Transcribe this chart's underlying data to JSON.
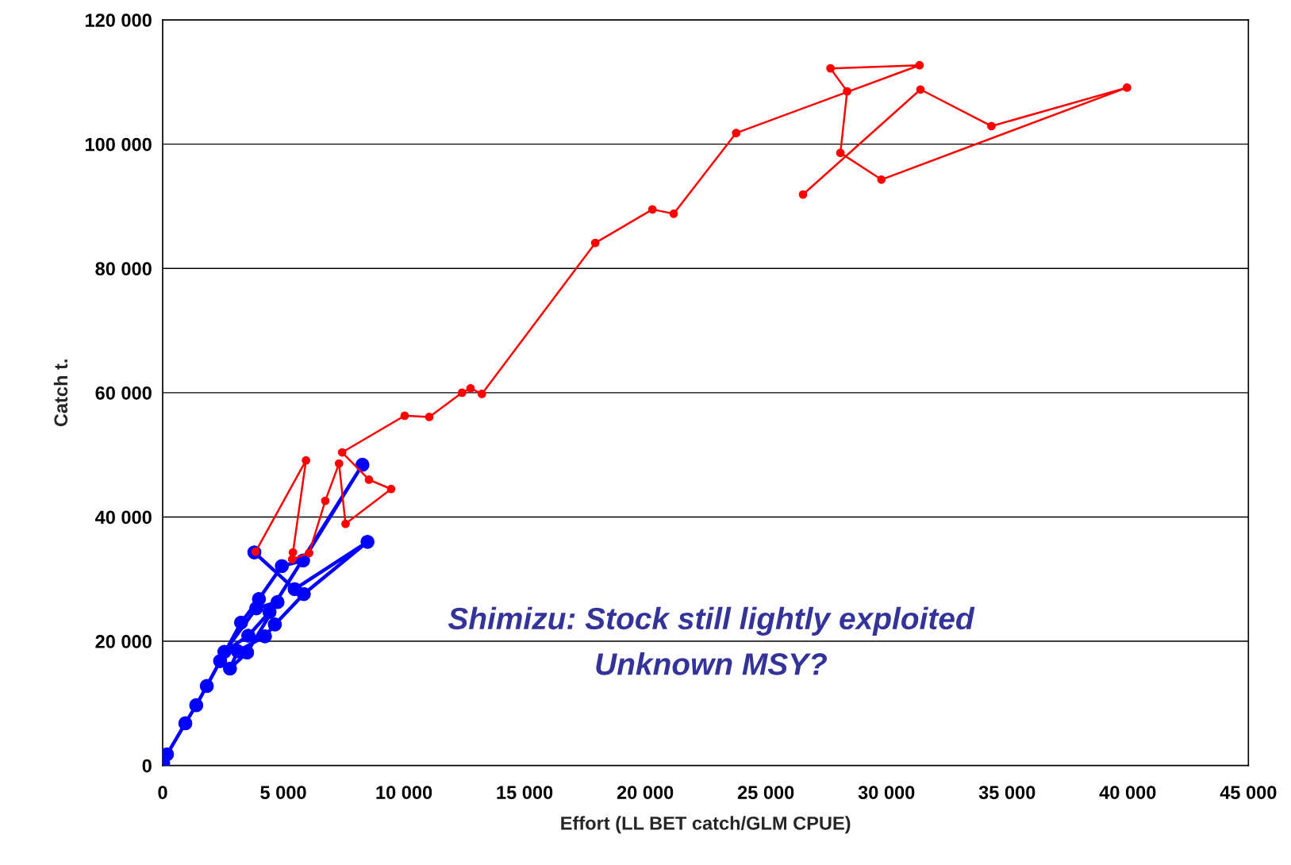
{
  "chart_data": {
    "type": "line",
    "xlabel": "Effort (LL BET catch/GLM CPUE)",
    "ylabel": "Catch t.",
    "annotations": [
      "Shimizu: Stock still lightly exploited\nUnknown MSY?"
    ],
    "xlim": [
      0,
      45000
    ],
    "ylim": [
      0,
      120000
    ],
    "xticks": [
      0,
      {
        "value": 5000,
        "label": "5 000"
      },
      {
        "value": 10000,
        "label": "10 000"
      },
      {
        "value": 15000,
        "label": "15 000"
      },
      {
        "value": 20000,
        "label": "20 000"
      },
      {
        "value": 25000,
        "label": "25 000"
      },
      {
        "value": 30000,
        "label": "30 000"
      },
      {
        "value": 35000,
        "label": "35 000"
      },
      {
        "value": 40000,
        "label": "40 000"
      },
      {
        "value": 45000,
        "label": "45 000"
      }
    ],
    "yticks": [
      0,
      {
        "value": 20000,
        "label": "20 000"
      },
      {
        "value": 40000,
        "label": "40 000"
      },
      {
        "value": 60000,
        "label": "60 000"
      },
      {
        "value": 80000,
        "label": "80 000"
      },
      {
        "value": 100000,
        "label": "100 000"
      },
      {
        "value": 120000,
        "label": "120 000"
      }
    ],
    "grid": "y",
    "legend": false,
    "marker": "circle",
    "line_style": "solid",
    "series": [
      {
        "color": "#ff0000",
        "x": [
          3850,
          5940,
          5400,
          5370,
          6070,
          6740,
          7310,
          7580,
          9470,
          8550,
          7440,
          10030,
          11050,
          12410,
          12760,
          13230,
          17930,
          20300,
          21180,
          23770,
          31370,
          27680,
          28370,
          28090,
          29790,
          39970,
          34350,
          31410,
          26540
        ],
        "values": [
          34400,
          49100,
          34300,
          33200,
          34200,
          42600,
          48600,
          38900,
          44500,
          46000,
          50400,
          56300,
          56100,
          60000,
          60700,
          59800,
          84100,
          89500,
          88800,
          101800,
          112700,
          112200,
          108500,
          98600,
          94300,
          109100,
          102900,
          108800,
          91900
        ]
      },
      {
        "color": "#0000ff",
        "x": [
          20,
          180,
          940,
          1390,
          1830,
          2380,
          3250,
          3990,
          4940,
          5820,
          8280,
          4430,
          3550,
          2560,
          3880,
          4760,
          3500,
          2790,
          3110,
          4240,
          4650,
          5850,
          8490,
          5470,
          3800
        ],
        "values": [
          400,
          1800,
          6800,
          9700,
          12800,
          16800,
          23000,
          26800,
          32100,
          33000,
          48400,
          24700,
          20900,
          18300,
          25300,
          26300,
          18200,
          15600,
          18400,
          20800,
          22700,
          27600,
          36000,
          28400,
          34300
        ]
      }
    ]
  }
}
